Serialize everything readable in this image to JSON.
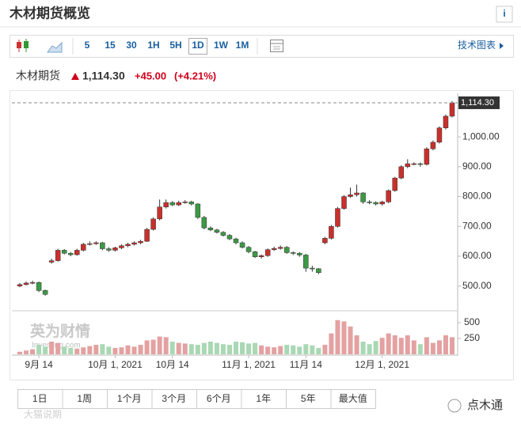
{
  "header": {
    "title": "木材期货概览",
    "info": "i"
  },
  "toolbar": {
    "intervals": [
      "5",
      "15",
      "30",
      "1H",
      "5H",
      "1D",
      "1W",
      "1M"
    ],
    "selected_index": 5,
    "link": "技术图表"
  },
  "quote": {
    "name": "木材期货",
    "price": "1,114.30",
    "change": "+45.00",
    "change_pct": "(+4.21%)"
  },
  "chart_data": {
    "type": "candlestick",
    "categories": [
      null,
      null,
      null,
      "9月 14",
      null,
      null,
      null,
      null,
      null,
      null,
      null,
      null,
      null,
      null,
      null,
      "10月 1, 2021",
      null,
      null,
      null,
      null,
      null,
      null,
      null,
      null,
      "10月 14",
      null,
      null,
      null,
      null,
      null,
      null,
      null,
      null,
      null,
      null,
      null,
      "11月 1, 2021",
      null,
      null,
      null,
      null,
      null,
      null,
      null,
      null,
      "11月 14",
      null,
      null,
      null,
      null,
      null,
      null,
      null,
      null,
      null,
      null,
      null,
      "12月 1, 2021",
      null,
      null,
      null,
      null,
      null,
      null,
      null,
      null,
      null,
      null,
      null
    ],
    "ohlc": [
      [
        500,
        510,
        496,
        505
      ],
      [
        505,
        515,
        502,
        510
      ],
      [
        510,
        518,
        506,
        512
      ],
      [
        512,
        515,
        480,
        485
      ],
      [
        485,
        488,
        468,
        472
      ],
      [
        580,
        592,
        575,
        585
      ],
      [
        585,
        625,
        582,
        620
      ],
      [
        620,
        624,
        606,
        610
      ],
      [
        610,
        614,
        600,
        605
      ],
      [
        605,
        625,
        602,
        620
      ],
      [
        620,
        645,
        616,
        640
      ],
      [
        640,
        650,
        636,
        642
      ],
      [
        642,
        650,
        638,
        645
      ],
      [
        645,
        648,
        620,
        625
      ],
      [
        625,
        630,
        615,
        620
      ],
      [
        620,
        632,
        616,
        628
      ],
      [
        628,
        640,
        624,
        635
      ],
      [
        635,
        645,
        630,
        640
      ],
      [
        640,
        650,
        636,
        645
      ],
      [
        645,
        655,
        640,
        650
      ],
      [
        650,
        695,
        648,
        690
      ],
      [
        690,
        730,
        686,
        725
      ],
      [
        725,
        790,
        720,
        765
      ],
      [
        765,
        790,
        760,
        780
      ],
      [
        780,
        785,
        768,
        772
      ],
      [
        772,
        786,
        768,
        780
      ],
      [
        780,
        788,
        776,
        782
      ],
      [
        782,
        786,
        770,
        775
      ],
      [
        775,
        778,
        725,
        730
      ],
      [
        730,
        735,
        690,
        695
      ],
      [
        695,
        700,
        684,
        688
      ],
      [
        688,
        692,
        676,
        680
      ],
      [
        680,
        684,
        666,
        670
      ],
      [
        670,
        674,
        654,
        658
      ],
      [
        658,
        662,
        640,
        645
      ],
      [
        645,
        650,
        626,
        630
      ],
      [
        630,
        634,
        610,
        615
      ],
      [
        615,
        618,
        594,
        598
      ],
      [
        598,
        606,
        592,
        602
      ],
      [
        602,
        626,
        598,
        622
      ],
      [
        622,
        632,
        618,
        626
      ],
      [
        626,
        636,
        622,
        630
      ],
      [
        630,
        634,
        608,
        612
      ],
      [
        612,
        616,
        604,
        610
      ],
      [
        610,
        614,
        598,
        604
      ],
      [
        604,
        608,
        548,
        560
      ],
      [
        560,
        568,
        548,
        558
      ],
      [
        558,
        560,
        540,
        545
      ],
      [
        645,
        665,
        640,
        660
      ],
      [
        660,
        705,
        656,
        700
      ],
      [
        700,
        765,
        696,
        760
      ],
      [
        760,
        805,
        756,
        800
      ],
      [
        800,
        830,
        796,
        806
      ],
      [
        806,
        840,
        800,
        812
      ],
      [
        812,
        815,
        776,
        782
      ],
      [
        782,
        788,
        774,
        780
      ],
      [
        780,
        784,
        770,
        775
      ],
      [
        775,
        786,
        770,
        782
      ],
      [
        782,
        824,
        778,
        820
      ],
      [
        820,
        866,
        816,
        862
      ],
      [
        862,
        905,
        858,
        900
      ],
      [
        900,
        925,
        895,
        910
      ],
      [
        910,
        915,
        905,
        910
      ],
      [
        910,
        914,
        900,
        908
      ],
      [
        908,
        965,
        904,
        960
      ],
      [
        960,
        988,
        955,
        982
      ],
      [
        982,
        1035,
        978,
        1030
      ],
      [
        1030,
        1075,
        1025,
        1069.3
      ],
      [
        1069.3,
        1120,
        1065,
        1114.3
      ]
    ],
    "up_color": "#c9302c",
    "down_color": "#3c9a45",
    "ylim": [
      425,
      1146
    ],
    "yticks": [
      {
        "value": 500,
        "label": "500.00"
      },
      {
        "value": 600,
        "label": "600.00"
      },
      {
        "value": 700,
        "label": "700.00"
      },
      {
        "value": 800,
        "label": "800.00"
      },
      {
        "value": 900,
        "label": "900.00"
      },
      {
        "value": 1000,
        "label": "1,000.00"
      }
    ],
    "volume": {
      "values": [
        40,
        60,
        80,
        150,
        120,
        200,
        180,
        120,
        100,
        90,
        110,
        130,
        150,
        160,
        120,
        100,
        110,
        140,
        120,
        150,
        220,
        230,
        280,
        270,
        200,
        180,
        170,
        160,
        150,
        180,
        200,
        180,
        160,
        150,
        200,
        190,
        170,
        180,
        140,
        120,
        110,
        130,
        150,
        140,
        120,
        160,
        140,
        100,
        150,
        330,
        540,
        520,
        440,
        300,
        200,
        160,
        210,
        260,
        330,
        300,
        260,
        300,
        220,
        160,
        270,
        180,
        220,
        300,
        270
      ],
      "ylim": [
        0,
        600
      ],
      "yticks": [
        250,
        500
      ],
      "up_color": "#e4a1a1",
      "down_color": "#a9d8b4"
    }
  },
  "ranges": [
    "1日",
    "1周",
    "1个月",
    "3个月",
    "6个月",
    "1年",
    "5年",
    "最大值"
  ],
  "watermarks": {
    "brand": "英为财情",
    "brand_sub": "Investing.com",
    "source": "大猫说期",
    "account": "点木通"
  }
}
